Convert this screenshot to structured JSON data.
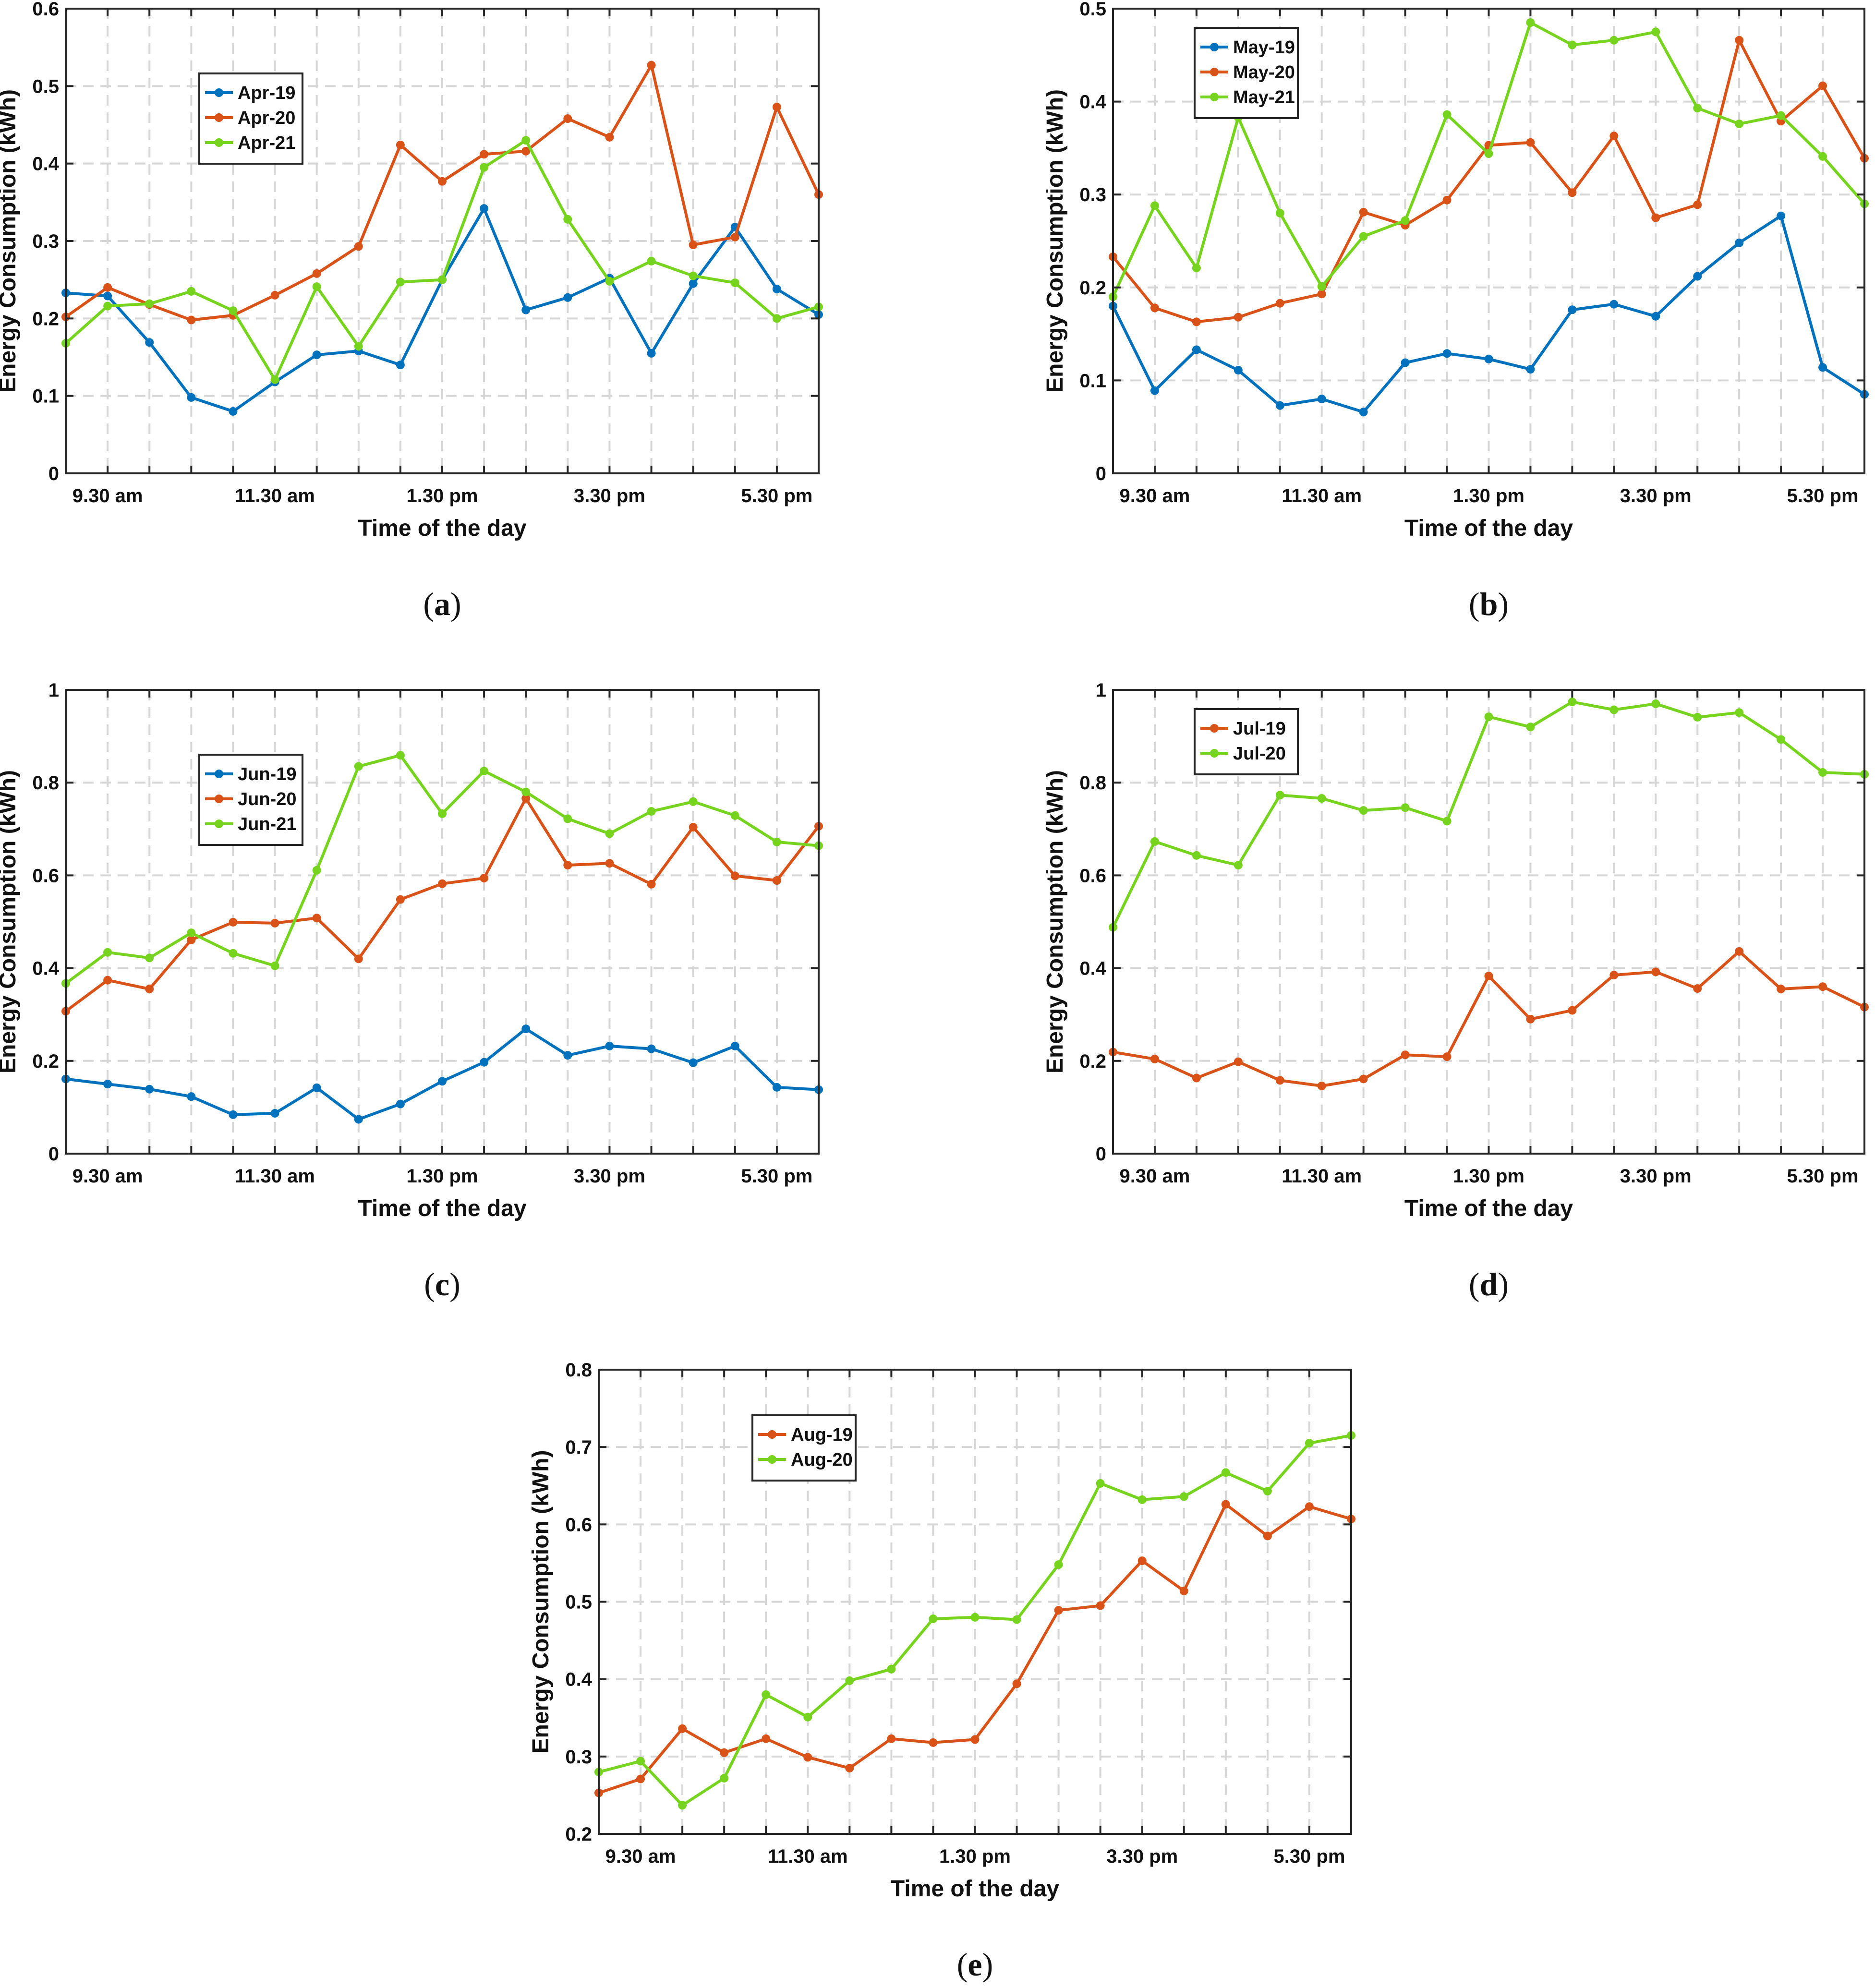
{
  "figure": {
    "colors": {
      "blue": "#0072BD",
      "orange": "#D95319",
      "green": "#77D41E"
    },
    "x_tick_labels": [
      "9.30 am",
      "11.30 am",
      "1.30 pm",
      "3.30 pm",
      "5.30 pm"
    ]
  },
  "chart_data": [
    {
      "type": "line",
      "panel": "a",
      "caption_letter": "a",
      "xlabel": "Time of the day",
      "ylabel": "Energy Consumption (kWh)",
      "ylim": [
        0,
        0.6
      ],
      "yticks": [
        "0",
        "0.1",
        "0.2",
        "0.3",
        "0.4",
        "0.5",
        "0.6"
      ],
      "grid": true,
      "legend_position": "upper-left",
      "series": [
        {
          "name": "Apr-19",
          "color": "blue",
          "values": [
            0.233,
            0.229,
            0.169,
            0.098,
            0.08,
            0.118,
            0.153,
            0.158,
            0.14,
            0.25,
            0.342,
            0.211,
            0.227,
            0.252,
            0.155,
            0.245,
            0.318,
            0.238,
            0.205
          ]
        },
        {
          "name": "Apr-20",
          "color": "orange",
          "values": [
            0.202,
            0.24,
            0.218,
            0.198,
            0.204,
            0.23,
            0.258,
            0.293,
            0.424,
            0.377,
            0.412,
            0.416,
            0.458,
            0.434,
            0.527,
            0.295,
            0.305,
            0.473,
            0.36
          ]
        },
        {
          "name": "Apr-21",
          "color": "green",
          "values": [
            0.168,
            0.216,
            0.219,
            0.235,
            0.21,
            0.121,
            0.241,
            0.164,
            0.247,
            0.25,
            0.395,
            0.43,
            0.328,
            0.248,
            0.274,
            0.255,
            0.246,
            0.2,
            0.215
          ]
        }
      ]
    },
    {
      "type": "line",
      "panel": "b",
      "caption_letter": "b",
      "xlabel": "Time of the day",
      "ylabel": "Energy Consumption (kWh)",
      "ylim": [
        0,
        0.5
      ],
      "yticks": [
        "0",
        "0.1",
        "0.2",
        "0.3",
        "0.4",
        "0.5"
      ],
      "grid": true,
      "legend_position": "upper-left",
      "series": [
        {
          "name": "May-19",
          "color": "blue",
          "values": [
            0.18,
            0.089,
            0.133,
            0.111,
            0.073,
            0.08,
            0.066,
            0.119,
            0.129,
            0.123,
            0.112,
            0.176,
            0.182,
            0.169,
            0.212,
            0.248,
            0.277,
            0.114,
            0.085
          ]
        },
        {
          "name": "May-20",
          "color": "orange",
          "values": [
            0.233,
            0.178,
            0.163,
            0.168,
            0.183,
            0.193,
            0.281,
            0.267,
            0.294,
            0.353,
            0.356,
            0.302,
            0.363,
            0.275,
            0.289,
            0.466,
            0.379,
            0.417,
            0.339
          ]
        },
        {
          "name": "May-21",
          "color": "green",
          "values": [
            0.19,
            0.288,
            0.221,
            0.383,
            0.28,
            0.201,
            0.255,
            0.272,
            0.386,
            0.344,
            0.485,
            0.461,
            0.466,
            0.475,
            0.393,
            0.376,
            0.385,
            0.341,
            0.29
          ]
        }
      ]
    },
    {
      "type": "line",
      "panel": "c",
      "caption_letter": "c",
      "xlabel": "Time of the day",
      "ylabel": "Energy Consumption (kWh)",
      "ylim": [
        0,
        1
      ],
      "yticks": [
        "0",
        "0.2",
        "0.4",
        "0.6",
        "0.8",
        "1"
      ],
      "grid": true,
      "legend_position": "upper-left",
      "series": [
        {
          "name": "Jun-19",
          "color": "blue",
          "values": [
            0.161,
            0.15,
            0.139,
            0.123,
            0.084,
            0.087,
            0.142,
            0.074,
            0.107,
            0.156,
            0.197,
            0.269,
            0.212,
            0.232,
            0.226,
            0.196,
            0.232,
            0.143,
            0.138
          ]
        },
        {
          "name": "Jun-20",
          "color": "orange",
          "values": [
            0.307,
            0.374,
            0.355,
            0.461,
            0.499,
            0.497,
            0.508,
            0.42,
            0.548,
            0.582,
            0.594,
            0.766,
            0.622,
            0.626,
            0.581,
            0.704,
            0.599,
            0.589,
            0.706
          ]
        },
        {
          "name": "Jun-21",
          "color": "green",
          "values": [
            0.367,
            0.434,
            0.422,
            0.476,
            0.432,
            0.405,
            0.611,
            0.835,
            0.859,
            0.733,
            0.825,
            0.78,
            0.722,
            0.69,
            0.738,
            0.759,
            0.729,
            0.672,
            0.664
          ]
        }
      ]
    },
    {
      "type": "line",
      "panel": "d",
      "caption_letter": "d",
      "xlabel": "Time of the day",
      "ylabel": "Energy Consumption (kWh)",
      "ylim": [
        0,
        1
      ],
      "yticks": [
        "0",
        "0.2",
        "0.4",
        "0.6",
        "0.8",
        "1"
      ],
      "grid": true,
      "legend_position": "upper-left",
      "series": [
        {
          "name": "Jul-19",
          "color": "orange",
          "values": [
            0.219,
            0.204,
            0.163,
            0.198,
            0.158,
            0.146,
            0.161,
            0.213,
            0.209,
            0.383,
            0.29,
            0.309,
            0.385,
            0.392,
            0.356,
            0.436,
            0.355,
            0.36,
            0.316
          ]
        },
        {
          "name": "Jul-20",
          "color": "green",
          "values": [
            0.488,
            0.673,
            0.643,
            0.622,
            0.773,
            0.766,
            0.74,
            0.746,
            0.717,
            0.942,
            0.92,
            0.974,
            0.957,
            0.97,
            0.941,
            0.951,
            0.893,
            0.822,
            0.818
          ]
        }
      ]
    },
    {
      "type": "line",
      "panel": "e",
      "caption_letter": "e",
      "xlabel": "Time of the day",
      "ylabel": "Energy Consumption (kWh)",
      "ylim": [
        0.2,
        0.8
      ],
      "yticks": [
        "0.2",
        "0.3",
        "0.4",
        "0.5",
        "0.6",
        "0.7",
        "0.8"
      ],
      "grid": true,
      "legend_position": "upper-left",
      "series": [
        {
          "name": "Aug-19",
          "color": "orange",
          "values": [
            0.253,
            0.271,
            0.336,
            0.305,
            0.323,
            0.299,
            0.285,
            0.323,
            0.318,
            0.322,
            0.394,
            0.489,
            0.495,
            0.553,
            0.514,
            0.626,
            0.585,
            0.623,
            0.607
          ]
        },
        {
          "name": "Aug-20",
          "color": "green",
          "values": [
            0.28,
            0.294,
            0.237,
            0.272,
            0.38,
            0.351,
            0.398,
            0.413,
            0.478,
            0.48,
            0.477,
            0.548,
            0.653,
            0.632,
            0.636,
            0.667,
            0.643,
            0.705,
            0.715
          ]
        }
      ]
    }
  ]
}
